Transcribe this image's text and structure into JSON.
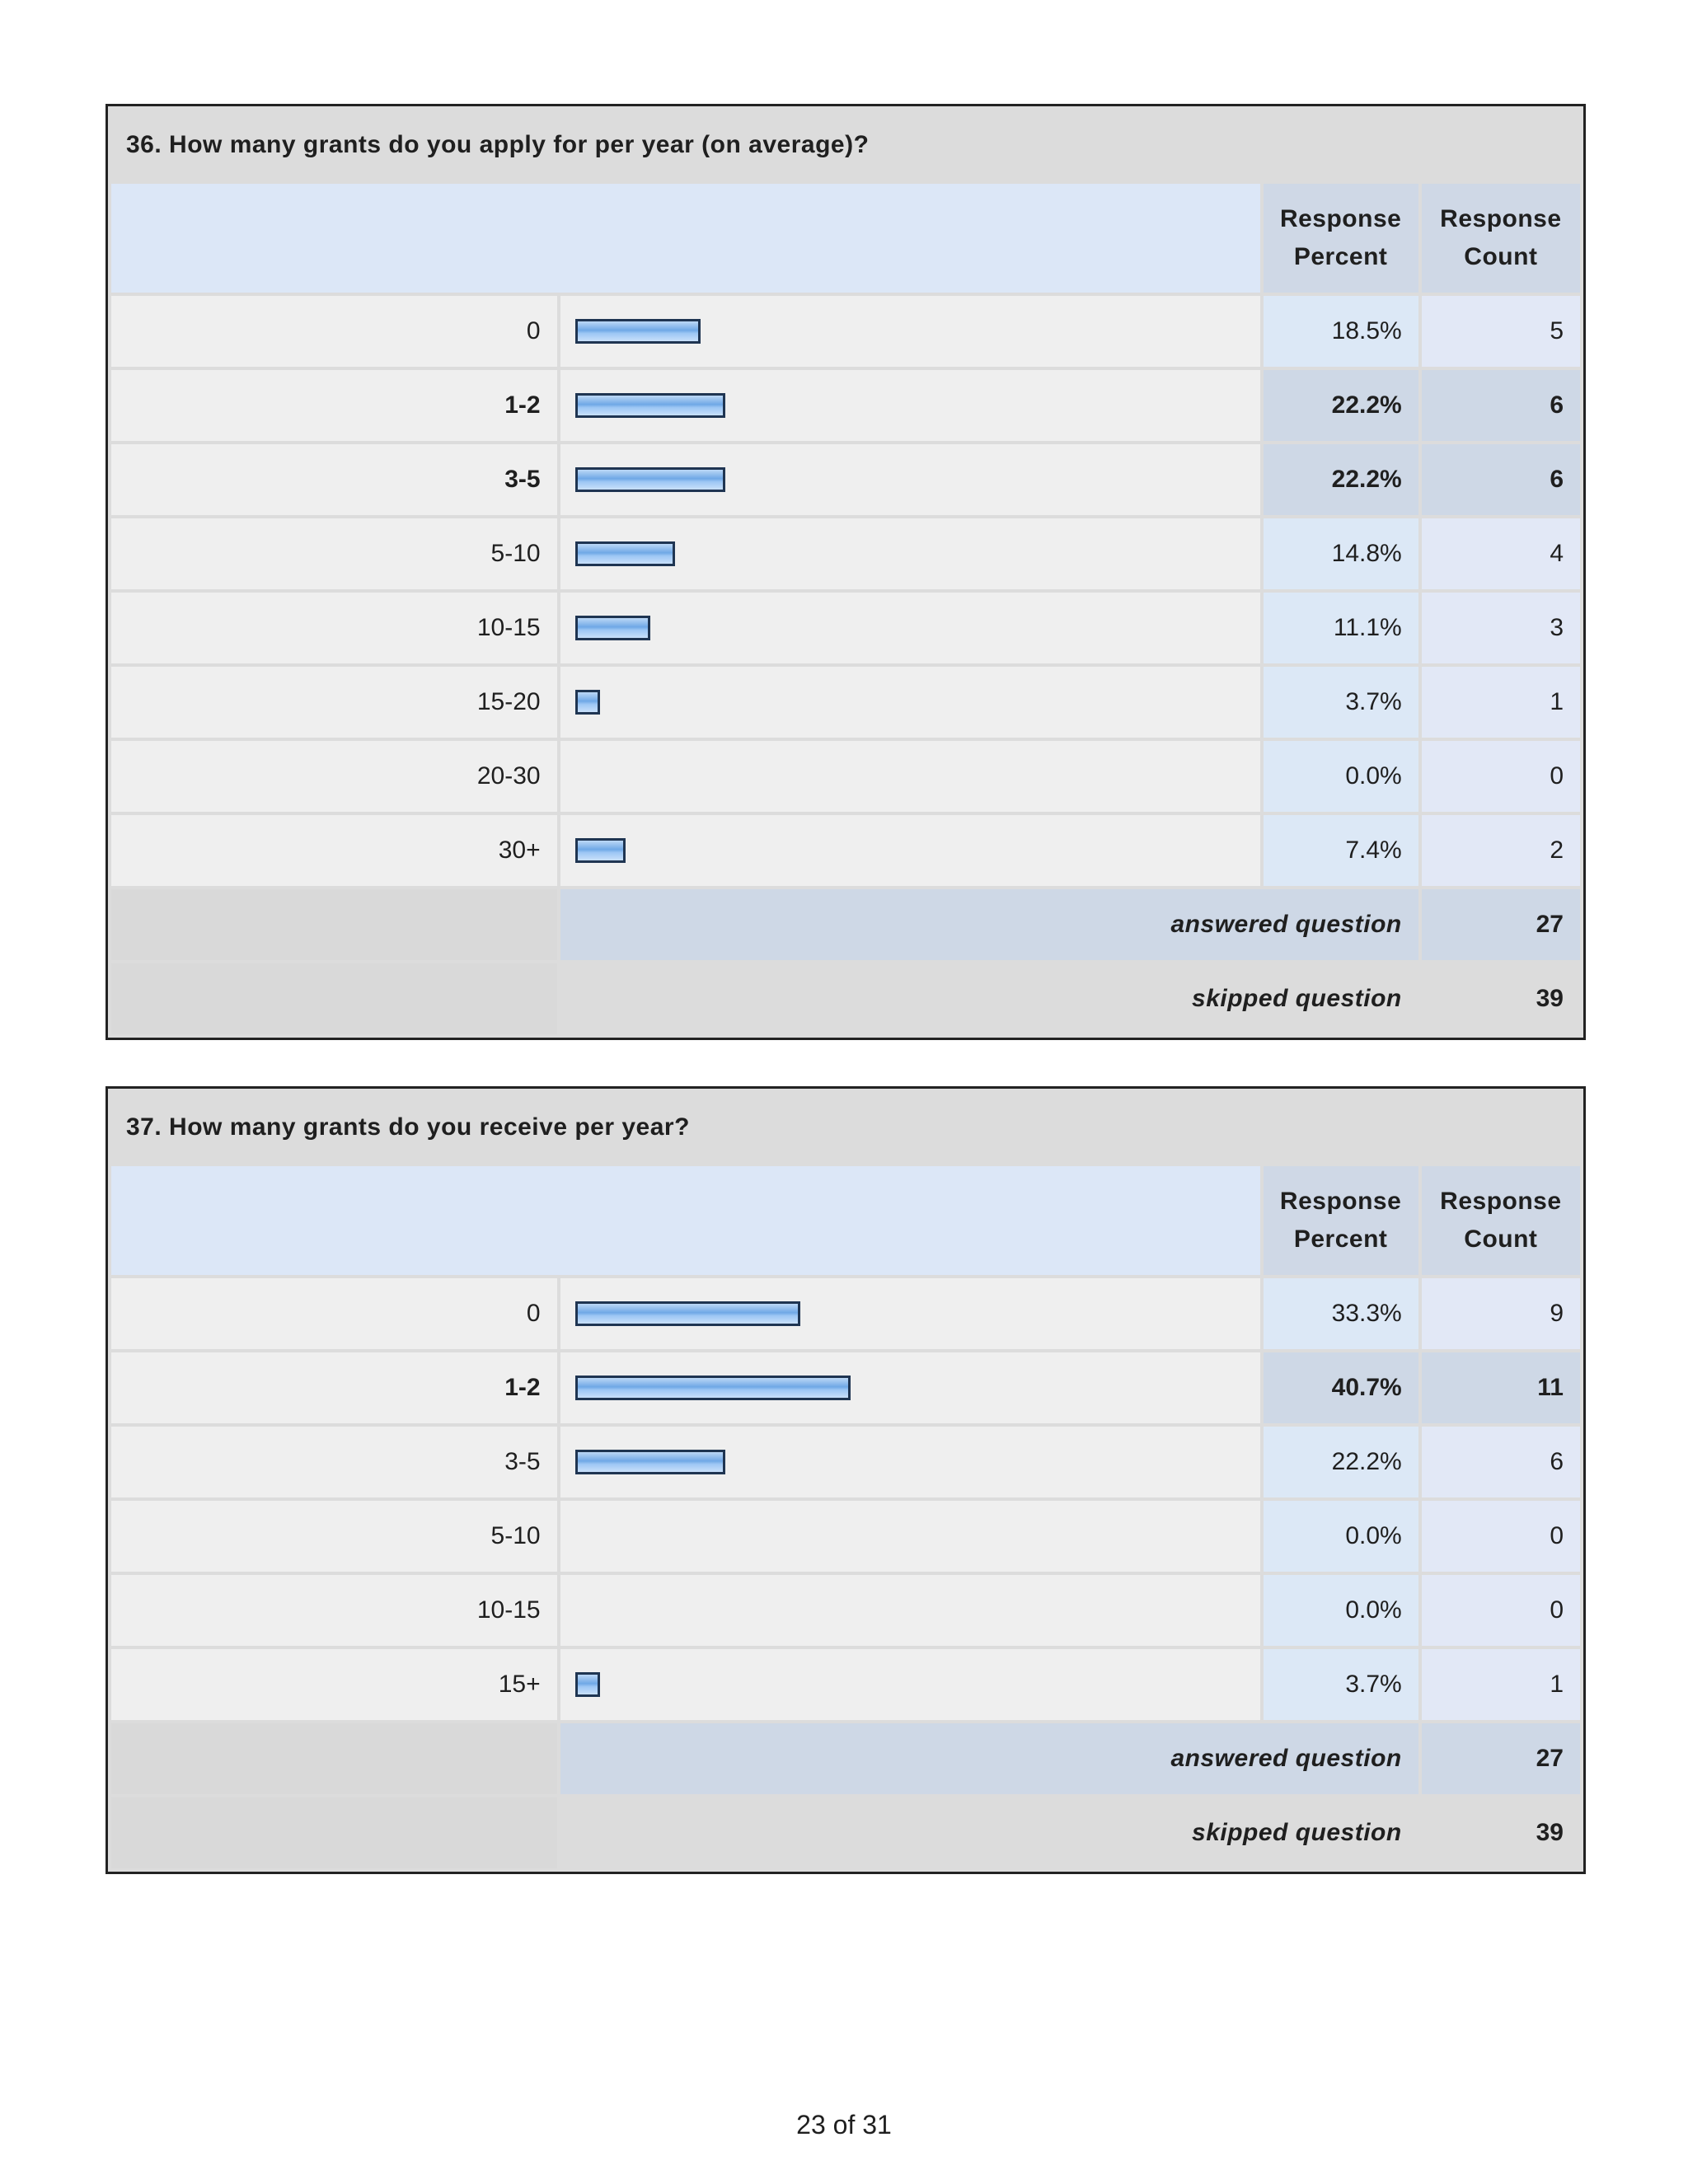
{
  "headers": {
    "percent": "Response Percent",
    "count": "Response Count"
  },
  "questions": [
    {
      "title": "36. How many grants do you apply for per year (on average)?",
      "rows": [
        {
          "label": "0",
          "percent": "18.5%",
          "count": "5",
          "value": 18.5,
          "bold": false
        },
        {
          "label": "1-2",
          "percent": "22.2%",
          "count": "6",
          "value": 22.2,
          "bold": true
        },
        {
          "label": "3-5",
          "percent": "22.2%",
          "count": "6",
          "value": 22.2,
          "bold": true
        },
        {
          "label": "5-10",
          "percent": "14.8%",
          "count": "4",
          "value": 14.8,
          "bold": false
        },
        {
          "label": "10-15",
          "percent": "11.1%",
          "count": "3",
          "value": 11.1,
          "bold": false
        },
        {
          "label": "15-20",
          "percent": "3.7%",
          "count": "1",
          "value": 3.7,
          "bold": false
        },
        {
          "label": "20-30",
          "percent": "0.0%",
          "count": "0",
          "value": 0,
          "bold": false
        },
        {
          "label": "30+",
          "percent": "7.4%",
          "count": "2",
          "value": 7.4,
          "bold": false
        }
      ],
      "answered_label": "answered question",
      "answered": "27",
      "skipped_label": "skipped question",
      "skipped": "39"
    },
    {
      "title": "37. How many grants do you receive per year?",
      "rows": [
        {
          "label": "0",
          "percent": "33.3%",
          "count": "9",
          "value": 33.3,
          "bold": false
        },
        {
          "label": "1-2",
          "percent": "40.7%",
          "count": "11",
          "value": 40.7,
          "bold": true
        },
        {
          "label": "3-5",
          "percent": "22.2%",
          "count": "6",
          "value": 22.2,
          "bold": false
        },
        {
          "label": "5-10",
          "percent": "0.0%",
          "count": "0",
          "value": 0,
          "bold": false
        },
        {
          "label": "10-15",
          "percent": "0.0%",
          "count": "0",
          "value": 0,
          "bold": false
        },
        {
          "label": "15+",
          "percent": "3.7%",
          "count": "1",
          "value": 3.7,
          "bold": false
        }
      ],
      "answered_label": "answered question",
      "answered": "27",
      "skipped_label": "skipped question",
      "skipped": "39"
    }
  ],
  "footer": "23 of 31"
}
